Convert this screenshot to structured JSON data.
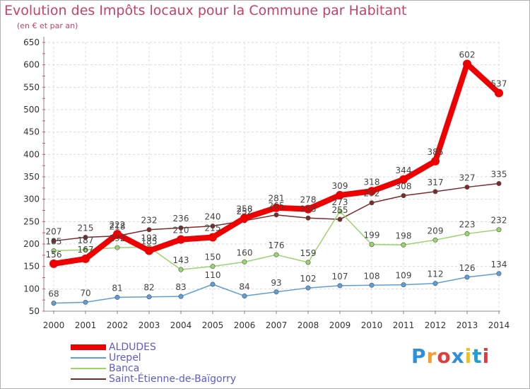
{
  "header": {
    "title": "Evolution des Impôts locaux pour la Commune par Habitant",
    "subtitle": "(en € et par an)"
  },
  "brand": {
    "letters": [
      "P",
      "r",
      "o",
      "x",
      "i",
      "t",
      "i"
    ],
    "colors": [
      "#2f8fd8",
      "#f0a030",
      "#e23b3b",
      "#2f8fd8",
      "#f0c020",
      "#1f9fd8",
      "#e23b3b"
    ]
  },
  "chart_data": {
    "type": "line",
    "title": "Evolution des Impôts locaux pour la Commune par Habitant",
    "subtitle": "(en € et par an)",
    "categories": [
      "2000",
      "2001",
      "2002",
      "2003",
      "2004",
      "2005",
      "2006",
      "2007",
      "2008",
      "2009",
      "2010",
      "2011",
      "2012",
      "2013",
      "2014"
    ],
    "ylim": [
      50,
      650
    ],
    "yticks": [
      50,
      100,
      150,
      200,
      250,
      300,
      350,
      400,
      450,
      500,
      550,
      600,
      650
    ],
    "series": [
      {
        "name": "ALDUDES",
        "color": "#ee0000",
        "width": 8,
        "values": [
          156,
          167,
          222,
          185,
          210,
          215,
          258,
          281,
          278,
          309,
          318,
          344,
          385,
          602,
          537
        ]
      },
      {
        "name": "Urepel",
        "color": "#5e9ed6",
        "width": 1.5,
        "values": [
          68,
          70,
          81,
          82,
          83,
          110,
          84,
          93,
          102,
          107,
          108,
          109,
          112,
          126,
          134
        ]
      },
      {
        "name": "Banca",
        "color": "#9ad46a",
        "width": 1.5,
        "values": [
          185,
          187,
          192,
          193,
          143,
          150,
          160,
          176,
          159,
          273,
          199,
          198,
          209,
          223,
          232
        ]
      },
      {
        "name": "Saint-Étienne-de-Baïgorry",
        "color": "#7b2a2a",
        "width": 1.5,
        "values": [
          207,
          215,
          218,
          232,
          236,
          240,
          252,
          265,
          258,
          255,
          292,
          308,
          317,
          327,
          335
        ]
      }
    ]
  }
}
